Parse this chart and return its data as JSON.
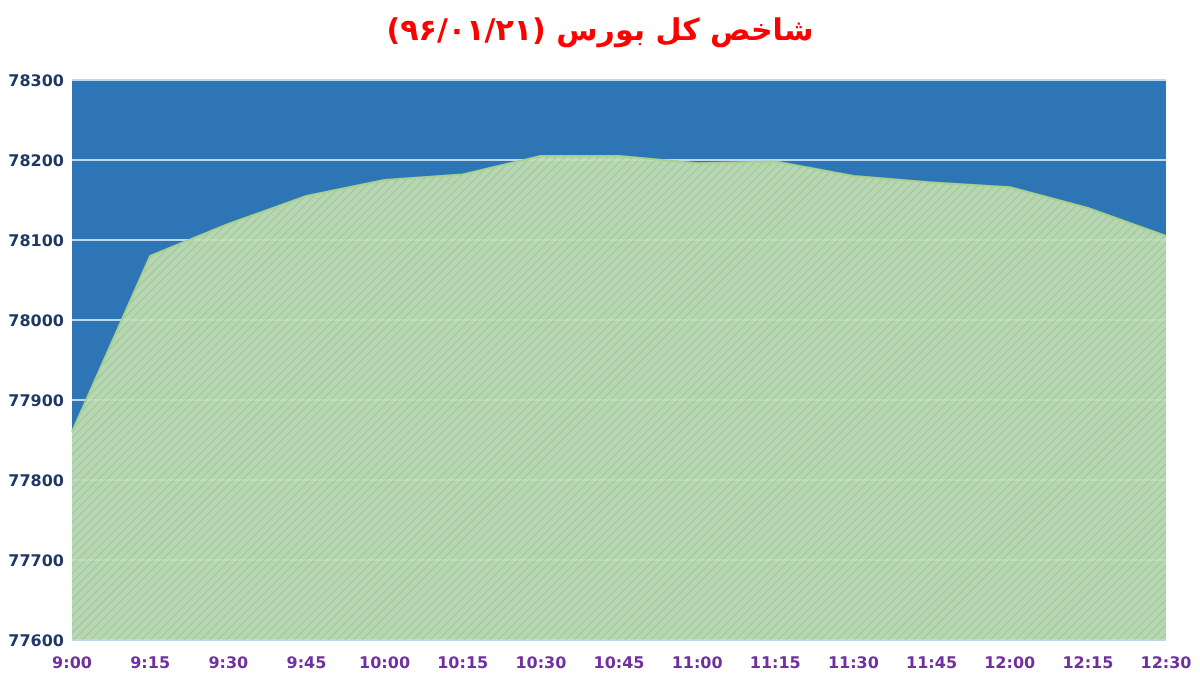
{
  "chart_data": {
    "type": "area",
    "title": "شاخص کل بورس (۹۶/۰۱/۲۱)",
    "categories": [
      "9:00",
      "9:15",
      "9:30",
      "9:45",
      "10:00",
      "10:15",
      "10:30",
      "10:45",
      "11:00",
      "11:15",
      "11:30",
      "11:45",
      "12:00",
      "12:15",
      "12:30"
    ],
    "series": [
      {
        "color": "#c5e0b4",
        "values": [
          77860,
          78080,
          78120,
          78155,
          78175,
          78182,
          78205,
          78205,
          78196,
          78198,
          78180,
          78172,
          78166,
          78140,
          78105
        ]
      }
    ],
    "ylim": [
      77600,
      78300
    ],
    "yticks": [
      77600,
      77700,
      77800,
      77900,
      78000,
      78100,
      78200,
      78300
    ],
    "grid": "y",
    "bands": [
      {
        "axis": "y",
        "from": 77600,
        "to": 78300,
        "color": "#2e75b6"
      }
    ]
  }
}
